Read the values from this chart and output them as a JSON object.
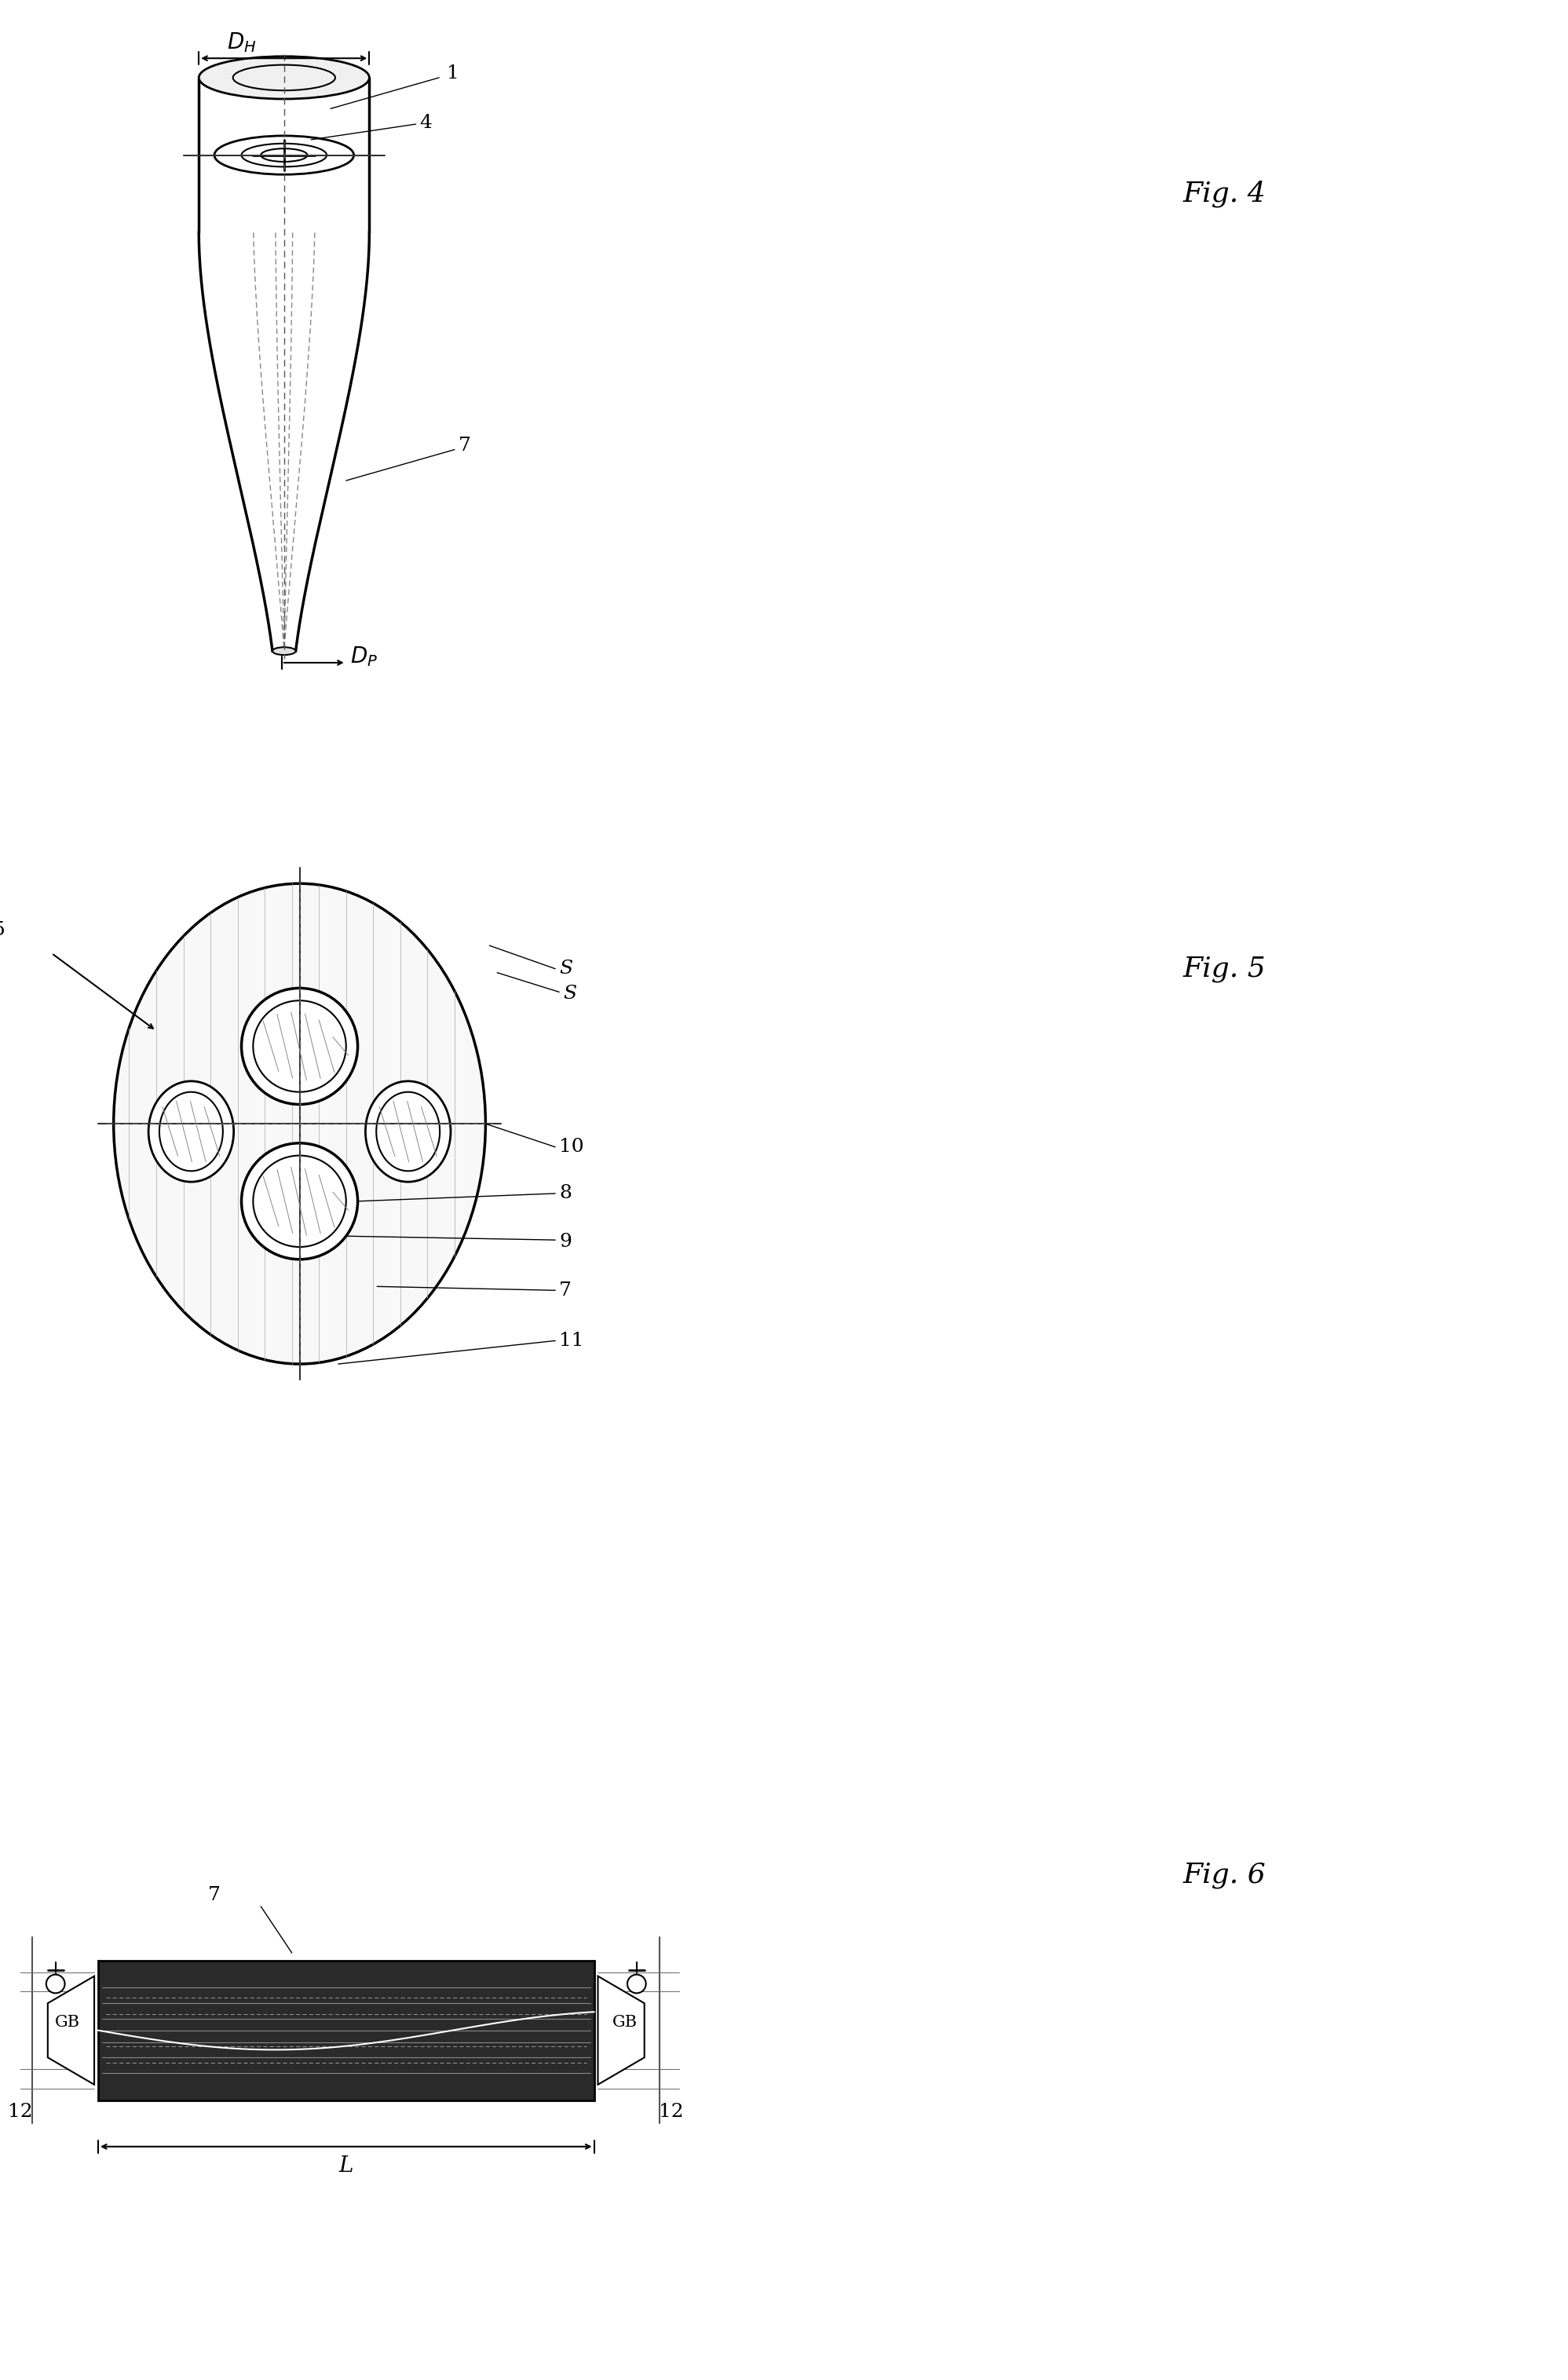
{
  "bg_color": "#ffffff",
  "line_color": "#000000",
  "gray_color": "#888888",
  "light_gray": "#cccccc",
  "fig4_label": "Fig. 4",
  "fig5_label": "Fig. 5",
  "fig6_label": "Fig. 6",
  "label_1": "1",
  "label_4": "4",
  "label_5": "5",
  "label_7": "7",
  "label_8": "8",
  "label_9": "9",
  "label_10": "10",
  "label_11": "11",
  "label_12": "12",
  "label_GB": "GB",
  "label_DH": "$D_H$",
  "label_DP": "$D_P$",
  "label_L": "L",
  "label_S1": "S",
  "label_S2": "S"
}
